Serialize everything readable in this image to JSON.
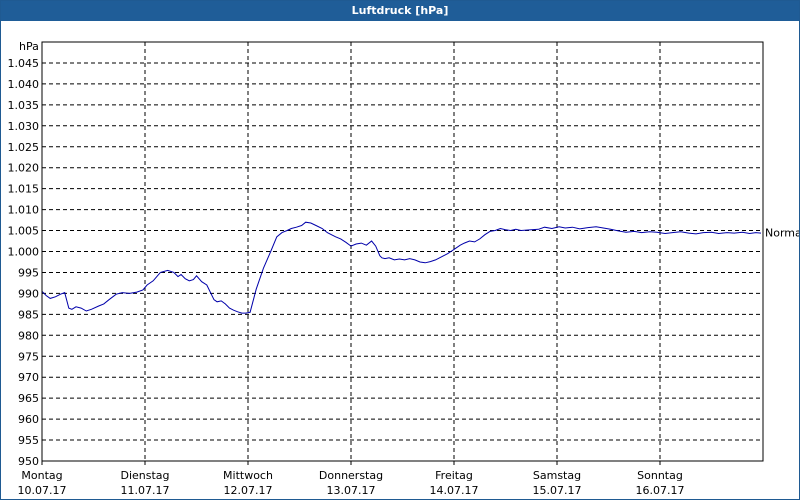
{
  "window": {
    "title": "Luftdruck [hPa]"
  },
  "chart_data": {
    "type": "line",
    "title": "Luftdruck [hPa]",
    "ylabel": "hPa",
    "ylim": [
      950,
      1050
    ],
    "y_ticks": [
      "1.045",
      "1.040",
      "1.035",
      "1.030",
      "1.025",
      "1.020",
      "1.015",
      "1.010",
      "1.005",
      "1.000",
      "995",
      "990",
      "985",
      "980",
      "975",
      "970",
      "965",
      "960",
      "955",
      "950"
    ],
    "y_tick_values": [
      1045,
      1040,
      1035,
      1030,
      1025,
      1020,
      1015,
      1010,
      1005,
      1000,
      995,
      990,
      985,
      980,
      975,
      970,
      965,
      960,
      955,
      950
    ],
    "x_days": [
      {
        "day": "Montag",
        "date": "10.07.17"
      },
      {
        "day": "Dienstag",
        "date": "11.07.17"
      },
      {
        "day": "Mittwoch",
        "date": "12.07.17"
      },
      {
        "day": "Donnerstag",
        "date": "13.07.17"
      },
      {
        "day": "Freitag",
        "date": "14.07.17"
      },
      {
        "day": "Samstag",
        "date": "15.07.17"
      },
      {
        "day": "Sonntag",
        "date": "16.07.17"
      }
    ],
    "reference_line": {
      "label": "Normal",
      "value": 1004.5
    },
    "series": [
      {
        "color": "#0000aa",
        "x": [
          0,
          0.04,
          0.08,
          0.13,
          0.18,
          0.22,
          0.26,
          0.29,
          0.33,
          0.38,
          0.43,
          0.48,
          0.55,
          0.6,
          0.65,
          0.72,
          0.78,
          0.85,
          0.92,
          0.98,
          1.02,
          1.08,
          1.15,
          1.22,
          1.28,
          1.32,
          1.35,
          1.39,
          1.43,
          1.47,
          1.5,
          1.55,
          1.6,
          1.64,
          1.67,
          1.7,
          1.74,
          1.78,
          1.82,
          1.86,
          1.9,
          1.94,
          1.98,
          2.02,
          2.08,
          2.15,
          2.22,
          2.28,
          2.33,
          2.38,
          2.42,
          2.47,
          2.52,
          2.56,
          2.61,
          2.66,
          2.72,
          2.77,
          2.81,
          2.85,
          2.9,
          2.95,
          3.0,
          3.05,
          3.1,
          3.15,
          3.2,
          3.24,
          3.28,
          3.3,
          3.33,
          3.37,
          3.42,
          3.47,
          3.52,
          3.57,
          3.62,
          3.67,
          3.72,
          3.77,
          3.82,
          3.86,
          3.9,
          3.94,
          3.97,
          4.0,
          4.03,
          4.06,
          4.1,
          4.15,
          4.2,
          4.25,
          4.3,
          4.35,
          4.4,
          4.45,
          4.5,
          4.55,
          4.6,
          4.65,
          4.7,
          4.75,
          4.82,
          4.88,
          4.95,
          5.02,
          5.08,
          5.15,
          5.22,
          5.3,
          5.38,
          5.45,
          5.52,
          5.6,
          5.67,
          5.75,
          5.82,
          5.9,
          5.97,
          6.05,
          6.12,
          6.2,
          6.28,
          6.35,
          6.42,
          6.5,
          6.57,
          6.65,
          6.72,
          6.8,
          6.87,
          6.93,
          7.0
        ],
        "values": [
          990.5,
          989.5,
          988.8,
          989.2,
          989.8,
          990.2,
          986.5,
          986.2,
          986.8,
          986.5,
          985.8,
          986.2,
          987.0,
          987.5,
          988.5,
          989.8,
          990.2,
          990.0,
          990.3,
          990.8,
          992.0,
          993.0,
          995.0,
          995.5,
          995.0,
          994.0,
          994.5,
          993.5,
          993.0,
          993.3,
          994.2,
          992.8,
          992.0,
          990.0,
          988.5,
          988.0,
          988.2,
          987.5,
          986.5,
          986.0,
          985.6,
          985.3,
          985.3,
          985.5,
          991.0,
          996.0,
          1000.0,
          1003.5,
          1004.5,
          1005.0,
          1005.5,
          1005.8,
          1006.2,
          1007.0,
          1006.8,
          1006.2,
          1005.5,
          1004.5,
          1004.0,
          1003.5,
          1003.0,
          1002.2,
          1001.3,
          1001.8,
          1002.0,
          1001.5,
          1002.5,
          1001.3,
          999.0,
          998.5,
          998.3,
          998.5,
          998.0,
          998.2,
          998.0,
          998.3,
          998.0,
          997.5,
          997.3,
          997.6,
          998.0,
          998.5,
          999.0,
          999.5,
          1000.0,
          1000.5,
          1001.0,
          1001.5,
          1002.0,
          1002.5,
          1002.3,
          1003.0,
          1004.0,
          1004.8,
          1005.0,
          1005.5,
          1005.2,
          1005.0,
          1005.3,
          1005.0,
          1005.1,
          1005.2,
          1005.3,
          1005.8,
          1005.5,
          1005.9,
          1005.6,
          1005.8,
          1005.4,
          1005.7,
          1005.9,
          1005.6,
          1005.3,
          1004.9,
          1004.6,
          1004.8,
          1004.5,
          1004.7,
          1004.6,
          1004.3,
          1004.5,
          1004.7,
          1004.4,
          1004.2,
          1004.5,
          1004.6,
          1004.3,
          1004.5,
          1004.4,
          1004.6,
          1004.3,
          1004.5,
          1004.4
        ]
      }
    ]
  }
}
